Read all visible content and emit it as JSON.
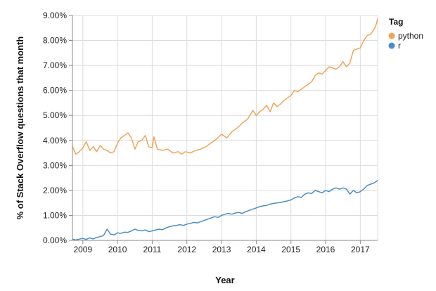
{
  "chart_data": {
    "type": "line",
    "title": "",
    "xlabel": "Year",
    "ylabel": "% of Stack Overflow questions that month",
    "xlim": [
      2008.7,
      2017.5
    ],
    "ylim": [
      0,
      9
    ],
    "x_ticks": [
      "2009",
      "2010",
      "2011",
      "2012",
      "2013",
      "2014",
      "2015",
      "2016",
      "2017"
    ],
    "y_ticks": [
      "0.00%",
      "1.00%",
      "2.00%",
      "3.00%",
      "4.00%",
      "5.00%",
      "6.00%",
      "7.00%",
      "8.00%",
      "9.00%"
    ],
    "grid": true,
    "legend": {
      "title": "Tag",
      "position": "top-right"
    },
    "series": [
      {
        "name": "python",
        "color": "#f0a458",
        "points": [
          [
            2008.7,
            3.75
          ],
          [
            2008.8,
            3.45
          ],
          [
            2008.9,
            3.55
          ],
          [
            2009.0,
            3.7
          ],
          [
            2009.1,
            3.95
          ],
          [
            2009.2,
            3.6
          ],
          [
            2009.3,
            3.75
          ],
          [
            2009.4,
            3.55
          ],
          [
            2009.5,
            3.8
          ],
          [
            2009.6,
            3.65
          ],
          [
            2009.7,
            3.6
          ],
          [
            2009.8,
            3.5
          ],
          [
            2009.9,
            3.55
          ],
          [
            2010.0,
            3.9
          ],
          [
            2010.1,
            4.1
          ],
          [
            2010.2,
            4.2
          ],
          [
            2010.3,
            4.3
          ],
          [
            2010.4,
            4.1
          ],
          [
            2010.5,
            3.65
          ],
          [
            2010.6,
            3.95
          ],
          [
            2010.7,
            4.0
          ],
          [
            2010.8,
            4.2
          ],
          [
            2010.9,
            3.75
          ],
          [
            2011.0,
            3.7
          ],
          [
            2011.05,
            4.15
          ],
          [
            2011.15,
            3.65
          ],
          [
            2011.3,
            3.6
          ],
          [
            2011.45,
            3.65
          ],
          [
            2011.6,
            3.5
          ],
          [
            2011.75,
            3.55
          ],
          [
            2011.85,
            3.45
          ],
          [
            2011.95,
            3.55
          ],
          [
            2012.1,
            3.5
          ],
          [
            2012.25,
            3.6
          ],
          [
            2012.4,
            3.65
          ],
          [
            2012.55,
            3.75
          ],
          [
            2012.7,
            3.9
          ],
          [
            2012.85,
            4.05
          ],
          [
            2013.0,
            4.25
          ],
          [
            2013.15,
            4.1
          ],
          [
            2013.3,
            4.35
          ],
          [
            2013.45,
            4.5
          ],
          [
            2013.6,
            4.7
          ],
          [
            2013.75,
            4.85
          ],
          [
            2013.9,
            5.2
          ],
          [
            2014.0,
            5.0
          ],
          [
            2014.1,
            5.15
          ],
          [
            2014.2,
            5.25
          ],
          [
            2014.3,
            5.4
          ],
          [
            2014.4,
            5.15
          ],
          [
            2014.5,
            5.5
          ],
          [
            2014.6,
            5.35
          ],
          [
            2014.7,
            5.45
          ],
          [
            2014.8,
            5.6
          ],
          [
            2014.9,
            5.7
          ],
          [
            2015.0,
            5.8
          ],
          [
            2015.1,
            6.0
          ],
          [
            2015.2,
            5.95
          ],
          [
            2015.3,
            6.05
          ],
          [
            2015.4,
            6.15
          ],
          [
            2015.5,
            6.25
          ],
          [
            2015.6,
            6.35
          ],
          [
            2015.7,
            6.6
          ],
          [
            2015.8,
            6.7
          ],
          [
            2015.9,
            6.65
          ],
          [
            2016.0,
            6.8
          ],
          [
            2016.1,
            6.95
          ],
          [
            2016.2,
            6.9
          ],
          [
            2016.3,
            6.85
          ],
          [
            2016.4,
            6.95
          ],
          [
            2016.5,
            7.15
          ],
          [
            2016.6,
            6.95
          ],
          [
            2016.7,
            7.1
          ],
          [
            2016.8,
            7.6
          ],
          [
            2016.9,
            7.65
          ],
          [
            2017.0,
            7.7
          ],
          [
            2017.1,
            8.0
          ],
          [
            2017.2,
            8.2
          ],
          [
            2017.3,
            8.25
          ],
          [
            2017.4,
            8.45
          ],
          [
            2017.45,
            8.6
          ],
          [
            2017.5,
            8.85
          ]
        ]
      },
      {
        "name": "r",
        "color": "#4c8ec1",
        "points": [
          [
            2008.7,
            0.05
          ],
          [
            2008.8,
            0.02
          ],
          [
            2008.9,
            0.05
          ],
          [
            2009.0,
            0.08
          ],
          [
            2009.1,
            0.04
          ],
          [
            2009.2,
            0.1
          ],
          [
            2009.3,
            0.06
          ],
          [
            2009.4,
            0.12
          ],
          [
            2009.5,
            0.15
          ],
          [
            2009.6,
            0.2
          ],
          [
            2009.7,
            0.45
          ],
          [
            2009.8,
            0.25
          ],
          [
            2009.9,
            0.22
          ],
          [
            2010.0,
            0.3
          ],
          [
            2010.1,
            0.28
          ],
          [
            2010.2,
            0.33
          ],
          [
            2010.3,
            0.32
          ],
          [
            2010.4,
            0.38
          ],
          [
            2010.5,
            0.45
          ],
          [
            2010.6,
            0.4
          ],
          [
            2010.7,
            0.38
          ],
          [
            2010.8,
            0.42
          ],
          [
            2010.9,
            0.35
          ],
          [
            2011.0,
            0.38
          ],
          [
            2011.1,
            0.42
          ],
          [
            2011.2,
            0.45
          ],
          [
            2011.3,
            0.43
          ],
          [
            2011.4,
            0.5
          ],
          [
            2011.5,
            0.55
          ],
          [
            2011.6,
            0.58
          ],
          [
            2011.7,
            0.6
          ],
          [
            2011.8,
            0.63
          ],
          [
            2011.9,
            0.6
          ],
          [
            2012.0,
            0.65
          ],
          [
            2012.1,
            0.68
          ],
          [
            2012.2,
            0.72
          ],
          [
            2012.3,
            0.7
          ],
          [
            2012.4,
            0.75
          ],
          [
            2012.5,
            0.8
          ],
          [
            2012.6,
            0.85
          ],
          [
            2012.7,
            0.9
          ],
          [
            2012.8,
            0.95
          ],
          [
            2012.9,
            0.92
          ],
          [
            2013.0,
            1.0
          ],
          [
            2013.1,
            1.05
          ],
          [
            2013.2,
            1.08
          ],
          [
            2013.3,
            1.05
          ],
          [
            2013.4,
            1.1
          ],
          [
            2013.5,
            1.12
          ],
          [
            2013.6,
            1.08
          ],
          [
            2013.7,
            1.15
          ],
          [
            2013.8,
            1.2
          ],
          [
            2013.9,
            1.25
          ],
          [
            2014.0,
            1.3
          ],
          [
            2014.1,
            1.35
          ],
          [
            2014.2,
            1.38
          ],
          [
            2014.3,
            1.4
          ],
          [
            2014.4,
            1.45
          ],
          [
            2014.5,
            1.48
          ],
          [
            2014.6,
            1.5
          ],
          [
            2014.7,
            1.52
          ],
          [
            2014.8,
            1.55
          ],
          [
            2014.9,
            1.58
          ],
          [
            2015.0,
            1.62
          ],
          [
            2015.1,
            1.7
          ],
          [
            2015.2,
            1.75
          ],
          [
            2015.3,
            1.72
          ],
          [
            2015.4,
            1.85
          ],
          [
            2015.5,
            1.9
          ],
          [
            2015.6,
            1.88
          ],
          [
            2015.7,
            2.0
          ],
          [
            2015.8,
            1.95
          ],
          [
            2015.9,
            1.9
          ],
          [
            2016.0,
            2.0
          ],
          [
            2016.1,
            1.95
          ],
          [
            2016.2,
            2.05
          ],
          [
            2016.3,
            2.1
          ],
          [
            2016.4,
            2.05
          ],
          [
            2016.5,
            2.1
          ],
          [
            2016.6,
            2.05
          ],
          [
            2016.7,
            1.85
          ],
          [
            2016.8,
            2.0
          ],
          [
            2016.9,
            1.9
          ],
          [
            2017.0,
            1.95
          ],
          [
            2017.1,
            2.05
          ],
          [
            2017.2,
            2.2
          ],
          [
            2017.3,
            2.25
          ],
          [
            2017.4,
            2.3
          ],
          [
            2017.5,
            2.4
          ]
        ]
      }
    ]
  }
}
